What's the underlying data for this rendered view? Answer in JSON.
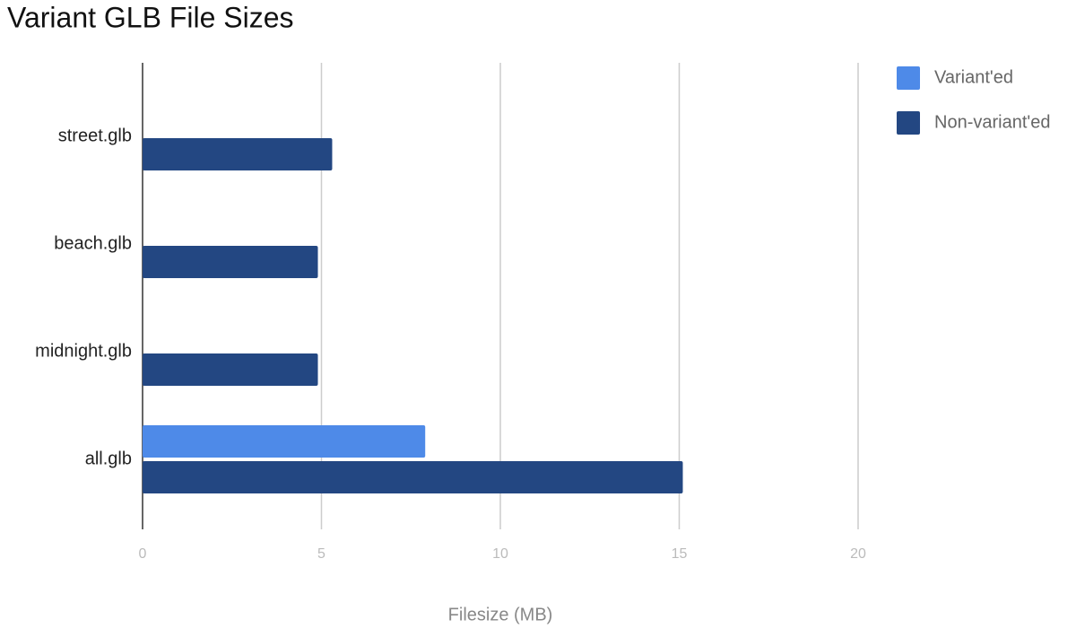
{
  "chart_data": {
    "type": "bar",
    "orientation": "horizontal",
    "title": "Variant GLB File Sizes",
    "x_label": "Filesize (MB)",
    "categories": [
      "street.glb",
      "beach.glb",
      "midnight.glb",
      "all.glb"
    ],
    "series": [
      {
        "name": "Variant'ed",
        "color": "#4e8ae8",
        "values": [
          null,
          null,
          null,
          7.9
        ]
      },
      {
        "name": "Non-variant'ed",
        "color": "#234782",
        "values": [
          5.3,
          4.9,
          4.9,
          15.1
        ]
      }
    ],
    "xlim": [
      0,
      20
    ],
    "xticks": [
      0,
      5,
      10,
      15,
      20
    ],
    "grid": true,
    "legend": "right"
  }
}
